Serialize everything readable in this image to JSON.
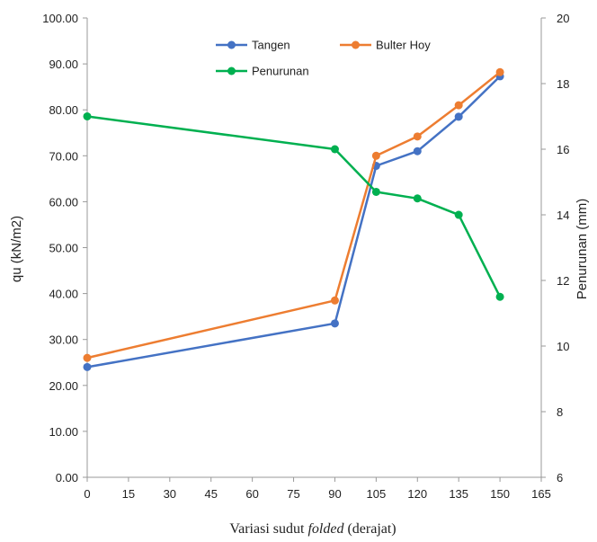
{
  "chart_data": {
    "type": "line",
    "x": [
      0,
      90,
      105,
      120,
      135,
      150
    ],
    "series": [
      {
        "name": "Tangen",
        "axis": "left",
        "color": "#4472C4",
        "values": [
          24.0,
          33.5,
          67.8,
          71.0,
          78.5,
          87.3
        ]
      },
      {
        "name": "Bulter Hoy",
        "axis": "left",
        "color": "#ED7D31",
        "values": [
          26.0,
          38.5,
          70.0,
          74.2,
          81.0,
          88.2
        ]
      },
      {
        "name": "Penurunan",
        "axis": "right",
        "color": "#00B050",
        "values": [
          17.0,
          16.0,
          14.7,
          14.5,
          14.0,
          11.5
        ]
      }
    ],
    "xlabel_prefix": "Variasi sudut ",
    "xlabel_italic": "folded",
    "xlabel_suffix": " (derajat)",
    "ylabel": "qu (kN/m2)",
    "y2label": "Penurunan (mm)",
    "xlim": [
      0,
      165
    ],
    "ylim": [
      0,
      100
    ],
    "y2lim": [
      6,
      20
    ],
    "xticks": [
      "0",
      "15",
      "30",
      "45",
      "60",
      "75",
      "90",
      "105",
      "120",
      "135",
      "150",
      "165"
    ],
    "yticks": [
      "0.00",
      "10.00",
      "20.00",
      "30.00",
      "40.00",
      "50.00",
      "60.00",
      "70.00",
      "80.00",
      "90.00",
      "100.00"
    ],
    "y2ticks": [
      "6",
      "8",
      "10",
      "12",
      "14",
      "16",
      "18",
      "20"
    ],
    "grid": false,
    "legend_position": "top-center"
  }
}
